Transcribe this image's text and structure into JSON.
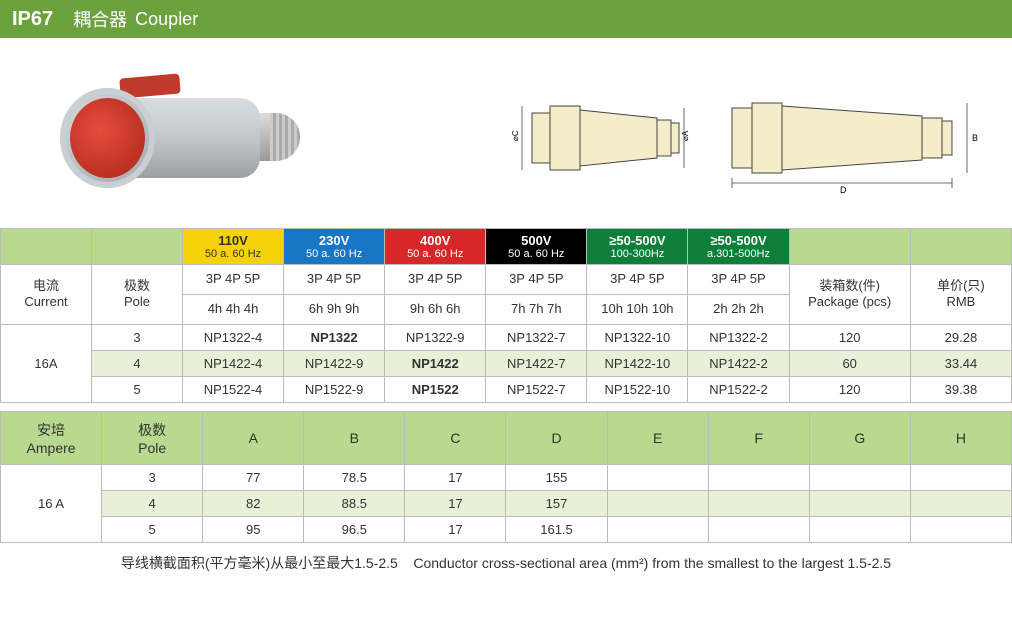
{
  "header": {
    "code": "IP67",
    "name_cn": "耦合器",
    "name_en": "Coupler"
  },
  "voltage_headers": [
    {
      "main": "110V",
      "sub": "50 a. 60 Hz",
      "bg": "#f5d20a",
      "fg": "#333333"
    },
    {
      "main": "230V",
      "sub": "50 a. 60 Hz",
      "bg": "#1976c4",
      "fg": "#ffffff"
    },
    {
      "main": "400V",
      "sub": "50 a. 60 Hz",
      "bg": "#d62828",
      "fg": "#ffffff"
    },
    {
      "main": "500V",
      "sub": "50 a. 60 Hz",
      "bg": "#000000",
      "fg": "#ffffff"
    },
    {
      "main": "≥50-500V",
      "sub": "100-300Hz",
      "bg": "#0e7f3a",
      "fg": "#ffffff"
    },
    {
      "main": "≥50-500V",
      "sub": "a.301-500Hz",
      "bg": "#0e7f3a",
      "fg": "#ffffff"
    }
  ],
  "col_labels": {
    "current_cn": "电流",
    "current_en": "Current",
    "pole_cn": "极数",
    "pole_en": "Pole",
    "package_cn": "装箱数(件)",
    "package_en": "Package (pcs)",
    "price_cn": "单价(只)",
    "price_en": "RMB"
  },
  "pole_hour_rows": [
    {
      "poles": "3P  4P  5P",
      "hours": "4h  4h  4h"
    },
    {
      "poles": "3P  4P  5P",
      "hours": "6h  9h  9h"
    },
    {
      "poles": "3P  4P  5P",
      "hours": "9h  6h  6h"
    },
    {
      "poles": "3P  4P  5P",
      "hours": "7h  7h  7h"
    },
    {
      "poles": "3P  4P  5P",
      "hours": "10h 10h 10h"
    },
    {
      "poles": "3P  4P  5P",
      "hours": "2h 2h 2h"
    }
  ],
  "product_table": {
    "current": "16A",
    "rows": [
      {
        "pole": "3",
        "cells": [
          "NP1322-4",
          "NP1322",
          "NP1322-9",
          "NP1322-7",
          "NP1322-10",
          "NP1322-2"
        ],
        "bold_idx": 1,
        "pkg": "120",
        "rmb": "29.28"
      },
      {
        "pole": "4",
        "cells": [
          "NP1422-4",
          "NP1422-9",
          "NP1422",
          "NP1422-7",
          "NP1422-10",
          "NP1422-2"
        ],
        "bold_idx": 2,
        "pkg": "60",
        "rmb": "33.44"
      },
      {
        "pole": "5",
        "cells": [
          "NP1522-4",
          "NP1522-9",
          "NP1522",
          "NP1522-7",
          "NP1522-10",
          "NP1522-2"
        ],
        "bold_idx": 2,
        "pkg": "120",
        "rmb": "39.38"
      }
    ]
  },
  "dim_labels": {
    "ampere_cn": "安培",
    "ampere_en": "Ampere",
    "pole_cn": "极数",
    "pole_en": "Pole",
    "cols": [
      "A",
      "B",
      "C",
      "D",
      "E",
      "F",
      "G",
      "H"
    ]
  },
  "dim_table": {
    "current": "16 A",
    "rows": [
      {
        "pole": "3",
        "vals": [
          "77",
          "78.5",
          "17",
          "155",
          "",
          "",
          "",
          ""
        ]
      },
      {
        "pole": "4",
        "vals": [
          "82",
          "88.5",
          "17",
          "157",
          "",
          "",
          "",
          ""
        ]
      },
      {
        "pole": "5",
        "vals": [
          "95",
          "96.5",
          "17",
          "161.5",
          "",
          "",
          "",
          ""
        ]
      }
    ]
  },
  "footnote": {
    "cn": "导线横截面积(平方毫米)从最小至最大1.5-2.5",
    "en": "Conductor cross-sectional area (mm²) from the smallest to the largest 1.5-2.5"
  },
  "colors": {
    "title_bg": "#6ca23e",
    "header_bg": "#b8d98e",
    "row_odd_bg": "#e8f0d8",
    "row_even_bg": "#ffffff",
    "border": "#bbbbbb"
  }
}
